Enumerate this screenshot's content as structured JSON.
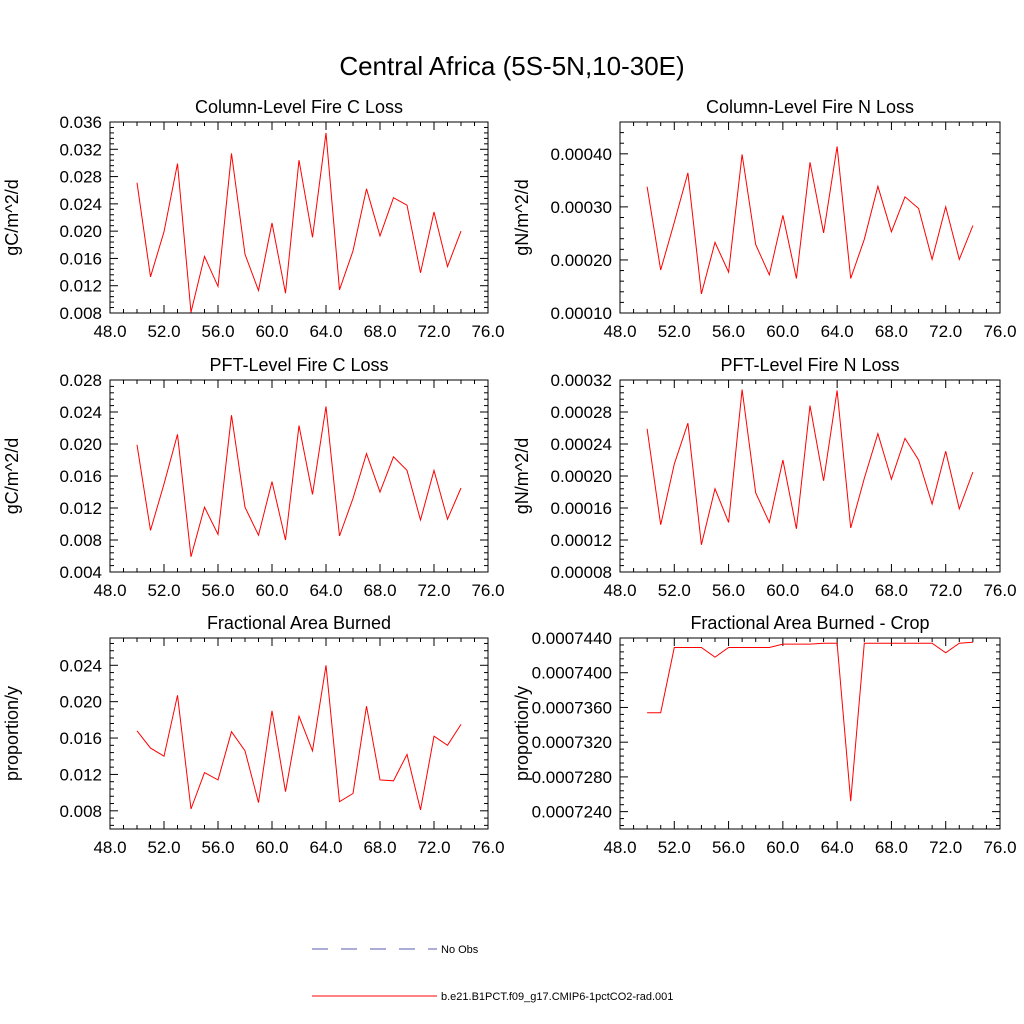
{
  "figure": {
    "title": "Central Africa (5S-5N,10-30E)"
  },
  "legend": {
    "entries": [
      {
        "label": "No Obs",
        "style": "dashed",
        "color": "#5a5ab0"
      },
      {
        "label": "b.e21.B1PCT.f09_g17.CMIP6-1pctCO2-rad.001",
        "style": "solid",
        "color": "#ff0000"
      }
    ]
  },
  "chart_data": [
    {
      "type": "line",
      "title": "Column-Level Fire C Loss",
      "xlabel": "",
      "ylabel": "gC/m^2/d",
      "xlim": [
        48,
        76
      ],
      "ylim": [
        0.008,
        0.036
      ],
      "xticks": [
        48,
        52,
        56,
        60,
        64,
        68,
        72,
        76
      ],
      "xtick_labels": [
        "48.0",
        "52.0",
        "56.0",
        "60.0",
        "64.0",
        "68.0",
        "72.0",
        "76.0"
      ],
      "yticks": [
        0.008,
        0.012,
        0.016,
        0.02,
        0.024,
        0.028,
        0.032,
        0.036
      ],
      "ytick_labels": [
        "0.008",
        "0.012",
        "0.016",
        "0.020",
        "0.024",
        "0.028",
        "0.032",
        "0.036"
      ],
      "x": [
        50,
        51,
        52,
        53,
        54,
        55,
        56,
        57,
        58,
        59,
        60,
        61,
        62,
        63,
        64,
        65,
        66,
        67,
        68,
        69,
        70,
        71,
        72,
        73,
        74
      ],
      "series": [
        {
          "color": "#ff0000",
          "values": [
            0.0271,
            0.0133,
            0.0199,
            0.0299,
            0.0081,
            0.0163,
            0.0119,
            0.0314,
            0.0166,
            0.0113,
            0.0212,
            0.0109,
            0.0304,
            0.0191,
            0.0344,
            0.0114,
            0.0171,
            0.0262,
            0.0193,
            0.0249,
            0.0238,
            0.0139,
            0.0228,
            0.0148,
            0.02
          ]
        }
      ]
    },
    {
      "type": "line",
      "title": "Column-Level Fire N Loss",
      "xlabel": "",
      "ylabel": "gN/m^2/d",
      "xlim": [
        48,
        76
      ],
      "ylim": [
        0.0001,
        0.00046
      ],
      "xticks": [
        48,
        52,
        56,
        60,
        64,
        68,
        72,
        76
      ],
      "xtick_labels": [
        "48.0",
        "52.0",
        "56.0",
        "60.0",
        "64.0",
        "68.0",
        "72.0",
        "76.0"
      ],
      "yticks": [
        0.0001,
        0.0002,
        0.0003,
        0.0004
      ],
      "ytick_labels": [
        "0.00010",
        "0.00020",
        "0.00030",
        "0.00040"
      ],
      "x": [
        50,
        51,
        52,
        53,
        54,
        55,
        56,
        57,
        58,
        59,
        60,
        61,
        62,
        63,
        64,
        65,
        66,
        67,
        68,
        69,
        70,
        71,
        72,
        73,
        74
      ],
      "series": [
        {
          "color": "#ff0000",
          "values": [
            0.000338,
            0.000181,
            0.000271,
            0.000364,
            0.000136,
            0.000233,
            0.000177,
            0.000399,
            0.000229,
            0.000172,
            0.000284,
            0.000165,
            0.000384,
            0.000251,
            0.000414,
            0.000165,
            0.000239,
            0.000339,
            0.000253,
            0.000319,
            0.000297,
            0.000201,
            0.0003,
            0.000201,
            0.000265
          ]
        }
      ]
    },
    {
      "type": "line",
      "title": "PFT-Level Fire C Loss",
      "xlabel": "",
      "ylabel": "gC/m^2/d",
      "xlim": [
        48,
        76
      ],
      "ylim": [
        0.004,
        0.028
      ],
      "xticks": [
        48,
        52,
        56,
        60,
        64,
        68,
        72,
        76
      ],
      "xtick_labels": [
        "48.0",
        "52.0",
        "56.0",
        "60.0",
        "64.0",
        "68.0",
        "72.0",
        "76.0"
      ],
      "yticks": [
        0.004,
        0.008,
        0.012,
        0.016,
        0.02,
        0.024,
        0.028
      ],
      "ytick_labels": [
        "0.004",
        "0.008",
        "0.012",
        "0.016",
        "0.020",
        "0.024",
        "0.028"
      ],
      "x": [
        50,
        51,
        52,
        53,
        54,
        55,
        56,
        57,
        58,
        59,
        60,
        61,
        62,
        63,
        64,
        65,
        66,
        67,
        68,
        69,
        70,
        71,
        72,
        73,
        74
      ],
      "series": [
        {
          "color": "#ff0000",
          "values": [
            0.0199,
            0.0092,
            0.015,
            0.0212,
            0.0059,
            0.0121,
            0.0087,
            0.0236,
            0.0121,
            0.0086,
            0.0153,
            0.008,
            0.0223,
            0.0137,
            0.0247,
            0.0085,
            0.0132,
            0.0188,
            0.014,
            0.0184,
            0.0167,
            0.0105,
            0.0167,
            0.0106,
            0.0145
          ]
        }
      ]
    },
    {
      "type": "line",
      "title": "PFT-Level Fire N Loss",
      "xlabel": "",
      "ylabel": "gN/m^2/d",
      "xlim": [
        48,
        76
      ],
      "ylim": [
        8e-05,
        0.00032
      ],
      "xticks": [
        48,
        52,
        56,
        60,
        64,
        68,
        72,
        76
      ],
      "xtick_labels": [
        "48.0",
        "52.0",
        "56.0",
        "60.0",
        "64.0",
        "68.0",
        "72.0",
        "76.0"
      ],
      "yticks": [
        8e-05,
        0.00012,
        0.00016,
        0.0002,
        0.00024,
        0.00028,
        0.00032
      ],
      "ytick_labels": [
        "0.00008",
        "0.00012",
        "0.00016",
        "0.00020",
        "0.00024",
        "0.00028",
        "0.00032"
      ],
      "x": [
        50,
        51,
        52,
        53,
        54,
        55,
        56,
        57,
        58,
        59,
        60,
        61,
        62,
        63,
        64,
        65,
        66,
        67,
        68,
        69,
        70,
        71,
        72,
        73,
        74
      ],
      "series": [
        {
          "color": "#ff0000",
          "values": [
            0.000259,
            0.000139,
            0.000215,
            0.000266,
            0.000114,
            0.000184,
            0.000142,
            0.000308,
            0.000179,
            0.000142,
            0.00022,
            0.000134,
            0.000288,
            0.000194,
            0.000307,
            0.000135,
            0.000197,
            0.000253,
            0.000196,
            0.000247,
            0.00022,
            0.000165,
            0.000231,
            0.000159,
            0.000205
          ]
        }
      ]
    },
    {
      "type": "line",
      "title": "Fractional Area Burned",
      "xlabel": "",
      "ylabel": "proportion/y",
      "xlim": [
        48,
        76
      ],
      "ylim": [
        0.006,
        0.027
      ],
      "xticks": [
        48,
        52,
        56,
        60,
        64,
        68,
        72,
        76
      ],
      "xtick_labels": [
        "48.0",
        "52.0",
        "56.0",
        "60.0",
        "64.0",
        "68.0",
        "72.0",
        "76.0"
      ],
      "yticks": [
        0.008,
        0.012,
        0.016,
        0.02,
        0.024
      ],
      "ytick_labels": [
        "0.008",
        "0.012",
        "0.016",
        "0.020",
        "0.024"
      ],
      "x": [
        50,
        51,
        52,
        53,
        54,
        55,
        56,
        57,
        58,
        59,
        60,
        61,
        62,
        63,
        64,
        65,
        66,
        67,
        68,
        69,
        70,
        71,
        72,
        73,
        74
      ],
      "series": [
        {
          "color": "#ff0000",
          "values": [
            0.0168,
            0.0149,
            0.014,
            0.0207,
            0.0082,
            0.0122,
            0.0114,
            0.0167,
            0.0146,
            0.0089,
            0.019,
            0.0101,
            0.0184,
            0.0146,
            0.024,
            0.009,
            0.0099,
            0.0195,
            0.0114,
            0.0113,
            0.0142,
            0.0081,
            0.0162,
            0.0152,
            0.0175
          ]
        }
      ]
    },
    {
      "type": "line",
      "title": "Fractional Area Burned - Crop",
      "xlabel": "",
      "ylabel": "proportion/y",
      "xlim": [
        48,
        76
      ],
      "ylim": [
        0.000722,
        0.000744
      ],
      "xticks": [
        48,
        52,
        56,
        60,
        64,
        68,
        72,
        76
      ],
      "xtick_labels": [
        "48.0",
        "52.0",
        "56.0",
        "60.0",
        "64.0",
        "68.0",
        "72.0",
        "76.0"
      ],
      "yticks": [
        0.000724,
        0.000728,
        0.000732,
        0.000736,
        0.00074,
        0.000744
      ],
      "ytick_labels": [
        "0.0007240",
        "0.0007280",
        "0.0007320",
        "0.0007360",
        "0.0007400",
        "0.0007440"
      ],
      "x": [
        50,
        51,
        52,
        53,
        54,
        55,
        56,
        57,
        58,
        59,
        60,
        61,
        62,
        63,
        64,
        65,
        66,
        67,
        68,
        69,
        70,
        71,
        72,
        73,
        74
      ],
      "series": [
        {
          "color": "#ff0000",
          "values": [
            0.0007354,
            0.0007354,
            0.0007429,
            0.0007429,
            0.0007429,
            0.0007418,
            0.0007429,
            0.0007429,
            0.0007429,
            0.0007429,
            0.0007433,
            0.0007433,
            0.0007433,
            0.0007434,
            0.0007434,
            0.0007252,
            0.0007434,
            0.0007434,
            0.0007434,
            0.0007434,
            0.0007434,
            0.0007434,
            0.0007423,
            0.0007434,
            0.0007435
          ]
        }
      ]
    }
  ]
}
